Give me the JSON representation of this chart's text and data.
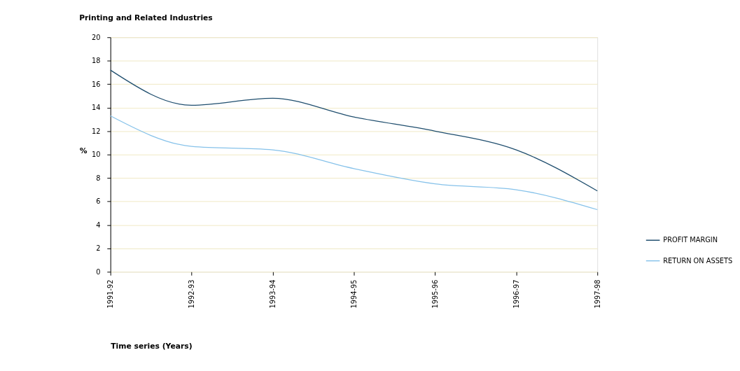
{
  "chart_data": {
    "type": "line",
    "title": "Printing and Related Industries",
    "xlabel": "Time series (Years)",
    "ylabel": "%",
    "categories": [
      "1991-92",
      "1992-93",
      "1993-94",
      "1994-95",
      "1995-96",
      "1996-97",
      "1997-98"
    ],
    "series": [
      {
        "name": "PROFIT MARGIN",
        "color": "#1f4e6e",
        "values": [
          17.2,
          14.2,
          14.8,
          13.2,
          12.0,
          10.4,
          6.9
        ]
      },
      {
        "name": "RETURN ON ASSETS",
        "color": "#86c2ea",
        "values": [
          13.3,
          10.7,
          10.4,
          8.8,
          7.5,
          7.0,
          5.3
        ]
      }
    ],
    "ylim": [
      0,
      20
    ],
    "yticks": [
      0,
      2,
      4,
      6,
      8,
      10,
      12,
      14,
      16,
      18,
      20
    ],
    "grid": "y",
    "legend": "bottom right",
    "marker": "none",
    "line_style": "solid"
  }
}
